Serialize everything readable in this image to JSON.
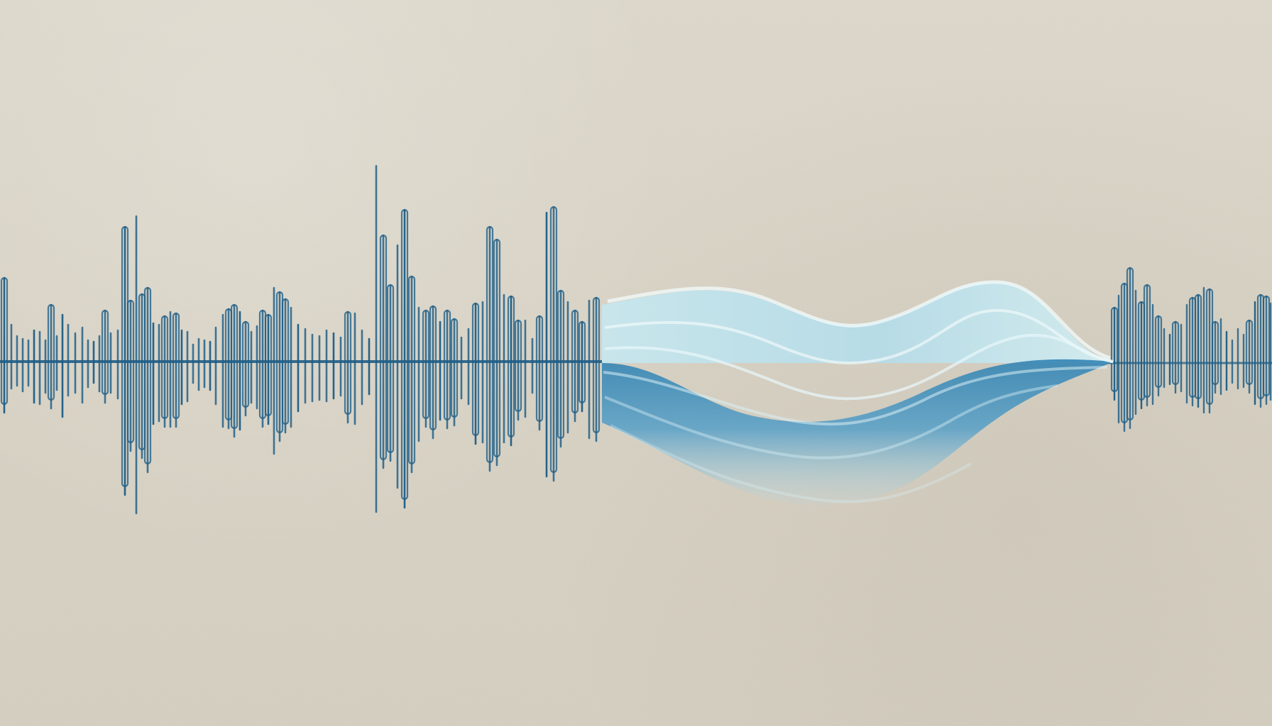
{
  "artwork": {
    "background_color": "#ddd8cb",
    "waveform_color": "#1d5d86",
    "wave_light_color": "#b9dfe8",
    "wave_mid_color": "#75b9d5",
    "wave_deep_color": "#2d78a6"
  }
}
